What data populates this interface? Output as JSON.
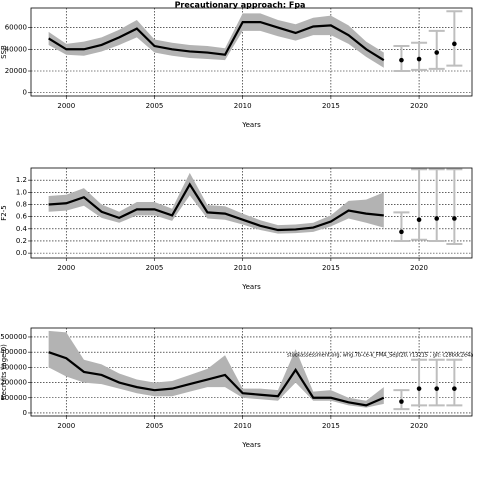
{
  "title": "Precautionary approach: Fpa",
  "chart_data": [
    {
      "type": "line",
      "ylabel": "SSB",
      "xlabel": "Years",
      "xlim": [
        1998,
        2023
      ],
      "xticks": [
        2000,
        2005,
        2010,
        2015,
        2020
      ],
      "ylim": [
        -3000,
        78000
      ],
      "yticks": [
        0,
        20000,
        40000,
        60000
      ],
      "grid": true,
      "color": "#000000",
      "band_color": "#b3b3b3",
      "forecast_color": "#bebebe",
      "x": [
        1999,
        2000,
        2001,
        2002,
        2003,
        2004,
        2005,
        2006,
        2007,
        2008,
        2009,
        2010,
        2011,
        2012,
        2013,
        2014,
        2015,
        2016,
        2017,
        2018
      ],
      "values": [
        50000,
        40000,
        40000,
        44000,
        51000,
        59000,
        43000,
        40000,
        38000,
        37000,
        35000,
        65000,
        65000,
        60000,
        55000,
        61000,
        62000,
        53000,
        40000,
        30000
      ],
      "low": [
        44000,
        35000,
        34000,
        38000,
        44000,
        51000,
        37000,
        34000,
        32000,
        31000,
        30000,
        57000,
        57000,
        52000,
        48000,
        53000,
        53000,
        45000,
        33000,
        23000
      ],
      "high": [
        56000,
        45000,
        47000,
        51000,
        58000,
        67000,
        49000,
        46000,
        44000,
        43000,
        41000,
        73000,
        73000,
        67000,
        63000,
        69000,
        71000,
        62000,
        47000,
        37000
      ],
      "forecast": {
        "x": [
          2019,
          2020,
          2021,
          2022
        ],
        "values": [
          30000,
          31000,
          37000,
          45000
        ],
        "low": [
          20000,
          21000,
          22000,
          25000
        ],
        "high": [
          43000,
          46000,
          57000,
          75000
        ]
      }
    },
    {
      "type": "line",
      "ylabel": "F2-5",
      "xlabel": "Years",
      "xlim": [
        1998,
        2023
      ],
      "xticks": [
        2000,
        2005,
        2010,
        2015,
        2020
      ],
      "ylim": [
        -0.08,
        1.4
      ],
      "yticks": [
        {
          "value": 0,
          "label": "0.0"
        },
        0.2,
        0.4,
        0.6,
        0.8,
        {
          "value": 1,
          "label": "1.0"
        },
        1.2
      ],
      "grid": true,
      "color": "#000000",
      "band_color": "#b3b3b3",
      "forecast_color": "#bebebe",
      "x": [
        1999,
        2000,
        2001,
        2002,
        2003,
        2004,
        2005,
        2006,
        2007,
        2008,
        2009,
        2010,
        2011,
        2012,
        2013,
        2014,
        2015,
        2016,
        2017,
        2018
      ],
      "values": [
        0.8,
        0.82,
        0.92,
        0.68,
        0.58,
        0.72,
        0.72,
        0.62,
        1.13,
        0.67,
        0.65,
        0.55,
        0.45,
        0.38,
        0.39,
        0.42,
        0.52,
        0.7,
        0.65,
        0.62
      ],
      "low": [
        0.68,
        0.7,
        0.78,
        0.58,
        0.5,
        0.62,
        0.62,
        0.53,
        0.95,
        0.57,
        0.55,
        0.47,
        0.38,
        0.32,
        0.33,
        0.35,
        0.44,
        0.57,
        0.5,
        0.42
      ],
      "high": [
        0.94,
        0.96,
        1.07,
        0.8,
        0.68,
        0.84,
        0.84,
        0.73,
        1.32,
        0.79,
        0.77,
        0.65,
        0.54,
        0.46,
        0.47,
        0.5,
        0.62,
        0.86,
        0.88,
        1.0
      ],
      "forecast": {
        "x": [
          2019,
          2020,
          2021,
          2022
        ],
        "values": [
          0.35,
          0.55,
          0.57,
          0.57
        ],
        "low": [
          0.2,
          0.22,
          0.2,
          0.15
        ],
        "high": [
          0.67,
          1.38,
          1.38,
          1.38
        ]
      }
    },
    {
      "type": "line",
      "ylabel": "Recruits (age 0)",
      "xlabel": "Years",
      "xlim": [
        1998,
        2023
      ],
      "xticks": [
        2000,
        2005,
        2010,
        2015,
        2020
      ],
      "ylim": [
        -20000,
        559000
      ],
      "yticks": [
        0,
        100000,
        200000,
        300000,
        400000,
        500000
      ],
      "grid": true,
      "color": "#000000",
      "band_color": "#b3b3b3",
      "forecast_color": "#bebebe",
      "annotation": "stockassessment.org, whg.7b-ce-k_FMA_Sept20, r13215 , git: c28bdc2e4a",
      "x": [
        1999,
        2000,
        2001,
        2002,
        2003,
        2004,
        2005,
        2006,
        2007,
        2008,
        2009,
        2010,
        2011,
        2012,
        2013,
        2014,
        2015,
        2016,
        2017,
        2018
      ],
      "values": [
        400000,
        360000,
        270000,
        250000,
        200000,
        170000,
        150000,
        160000,
        190000,
        220000,
        250000,
        130000,
        120000,
        110000,
        283000,
        100000,
        100000,
        70000,
        50000,
        100000
      ],
      "low": [
        300000,
        240000,
        200000,
        190000,
        160000,
        130000,
        110000,
        110000,
        140000,
        170000,
        170000,
        100000,
        90000,
        80000,
        200000,
        80000,
        80000,
        50000,
        35000,
        60000
      ],
      "high": [
        540000,
        530000,
        350000,
        320000,
        260000,
        220000,
        200000,
        210000,
        250000,
        290000,
        380000,
        160000,
        160000,
        150000,
        420000,
        140000,
        150000,
        100000,
        80000,
        170000
      ],
      "forecast": {
        "x": [
          2019,
          2020,
          2021,
          2022
        ],
        "values": [
          75000,
          160000,
          160000,
          160000
        ],
        "low": [
          25000,
          50000,
          50000,
          50000
        ],
        "high": [
          150000,
          350000,
          350000,
          350000
        ]
      }
    }
  ]
}
